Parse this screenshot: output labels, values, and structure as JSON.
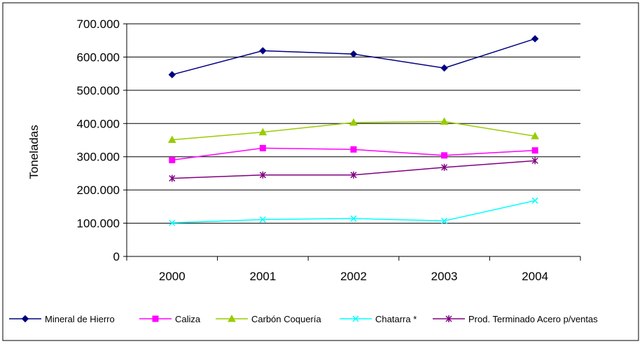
{
  "chart_data": {
    "type": "line",
    "title": "",
    "xlabel": "",
    "ylabel": "Toneladas",
    "categories": [
      "2000",
      "2001",
      "2002",
      "2003",
      "2004"
    ],
    "ylim": [
      0,
      700000
    ],
    "y_ticks": [
      0,
      100000,
      200000,
      300000,
      400000,
      500000,
      600000,
      700000
    ],
    "y_tick_labels": [
      "0",
      "100.000",
      "200.000",
      "300.000",
      "400.000",
      "500.000",
      "600.000",
      "700.000"
    ],
    "grid": true,
    "legend_position": "bottom",
    "series": [
      {
        "name": "Mineral de Hierro",
        "color": "#000080",
        "marker": "diamond",
        "values": [
          547000,
          619000,
          609000,
          567000,
          655000
        ]
      },
      {
        "name": "Caliza",
        "color": "#ff00ff",
        "marker": "square",
        "values": [
          290000,
          326000,
          322000,
          304000,
          319000
        ]
      },
      {
        "name": "Carbón Coquería",
        "color": "#99cc00",
        "marker": "triangle",
        "values": [
          351000,
          374000,
          403000,
          406000,
          362000
        ]
      },
      {
        "name": "Chatarra *",
        "color": "#00ffff",
        "marker": "x",
        "values": [
          101000,
          111000,
          114000,
          107000,
          168000
        ]
      },
      {
        "name": "Prod. Terminado Acero p/ventas",
        "color": "#800080",
        "marker": "star",
        "values": [
          235000,
          245000,
          245000,
          268000,
          288000
        ]
      }
    ]
  }
}
